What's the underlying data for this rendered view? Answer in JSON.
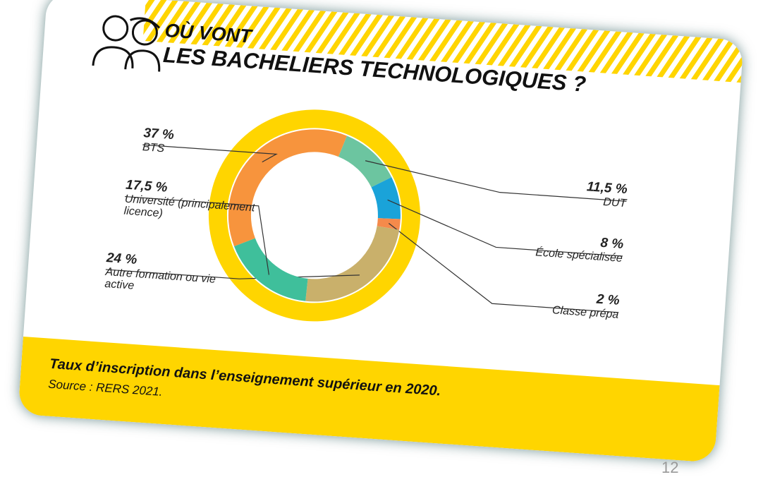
{
  "chart_data": {
    "type": "donut",
    "title": "OÙ VONT",
    "subtitle": "LES BACHELIERS TECHNOLOGIQUES ?",
    "categories": [
      "BTS",
      "DUT",
      "École spécialisée",
      "Classe prépa",
      "Autre formation ou vie active",
      "Université (principalement licence)"
    ],
    "values": [
      37,
      11.5,
      8,
      2,
      24,
      17.5
    ],
    "value_labels": [
      "37 %",
      "11,5 %",
      "8 %",
      "2 %",
      "24 %",
      "17,5 %"
    ],
    "colors": [
      "#f7943d",
      "#6cc5a0",
      "#1aa3d9",
      "#f58a4b",
      "#c9b06b",
      "#3fbf9b"
    ],
    "ring_color": "#ffd500",
    "caption": "Taux d’inscription dans l’enseignement supérieur en 2020.",
    "source": "Source : RERS 2021.",
    "page_number": "12"
  }
}
